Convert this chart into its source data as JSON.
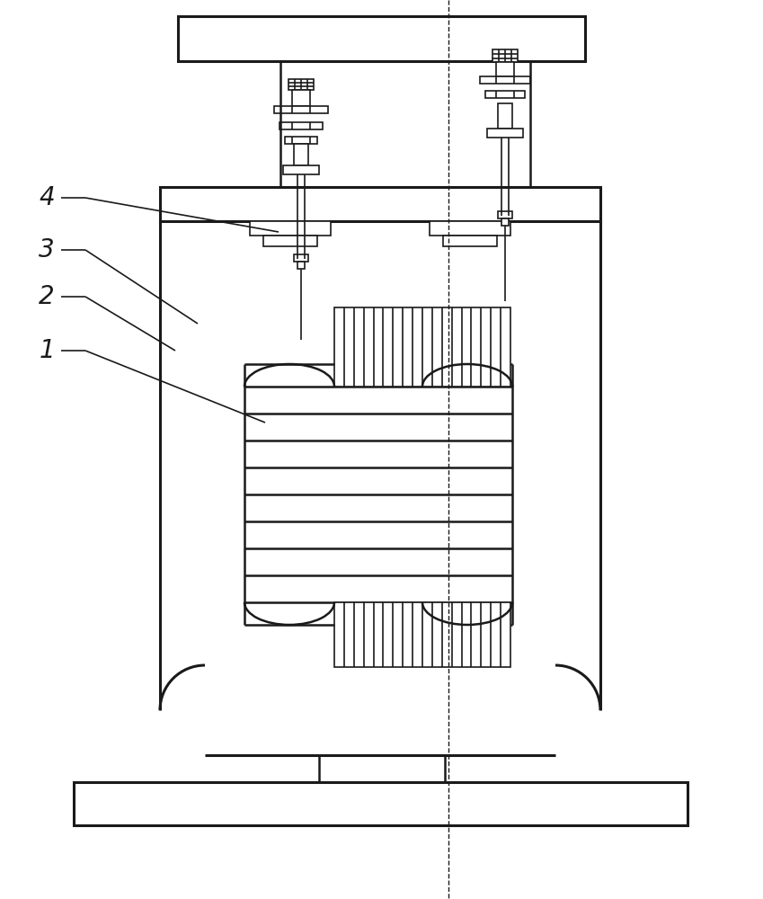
{
  "bg_color": "#ffffff",
  "line_color": "#1a1a1a",
  "lw_thin": 1.2,
  "lw_med": 1.8,
  "lw_thick": 2.2
}
